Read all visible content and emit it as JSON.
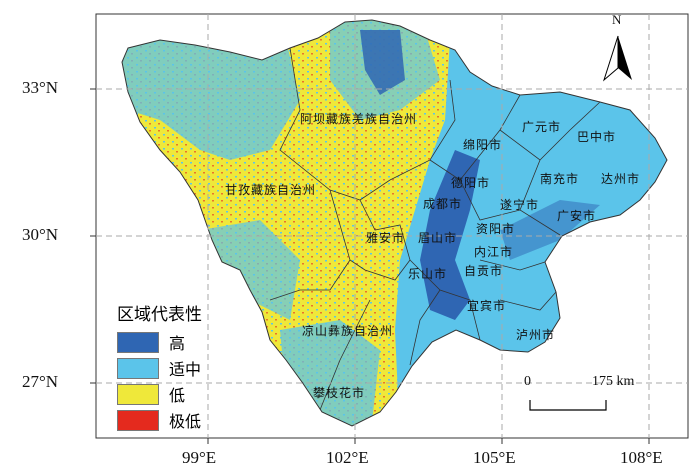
{
  "colors": {
    "high": "#2f66b3",
    "medium": "#5bc4ea",
    "low": "#efe83a",
    "very_low": "#e42a1e"
  },
  "axes": {
    "x_ticks": [
      "99°E",
      "102°E",
      "105°E",
      "108°E"
    ],
    "y_ticks": [
      "33°N",
      "30°N",
      "27°N"
    ]
  },
  "north_arrow": "N",
  "scale_bar": {
    "start": "0",
    "end": "175 km"
  },
  "legend": {
    "title": "区域代表性",
    "items": [
      {
        "label": "高",
        "color": "#2f66b3"
      },
      {
        "label": "适中",
        "color": "#5bc4ea"
      },
      {
        "label": "低",
        "color": "#efe83a"
      },
      {
        "label": "极低",
        "color": "#e42a1e"
      }
    ]
  },
  "regions": [
    "阿坝藏族羌族自治州",
    "甘孜藏族自治州",
    "凉山彝族自治州",
    "攀枝花市",
    "雅安市",
    "眉山市",
    "乐山市",
    "成都市",
    "德阳市",
    "绵阳市",
    "广元市",
    "巴中市",
    "南充市",
    "达州市",
    "遂宁市",
    "广安市",
    "资阳市",
    "内江市",
    "自贡市",
    "宜宾市",
    "泸州市"
  ]
}
